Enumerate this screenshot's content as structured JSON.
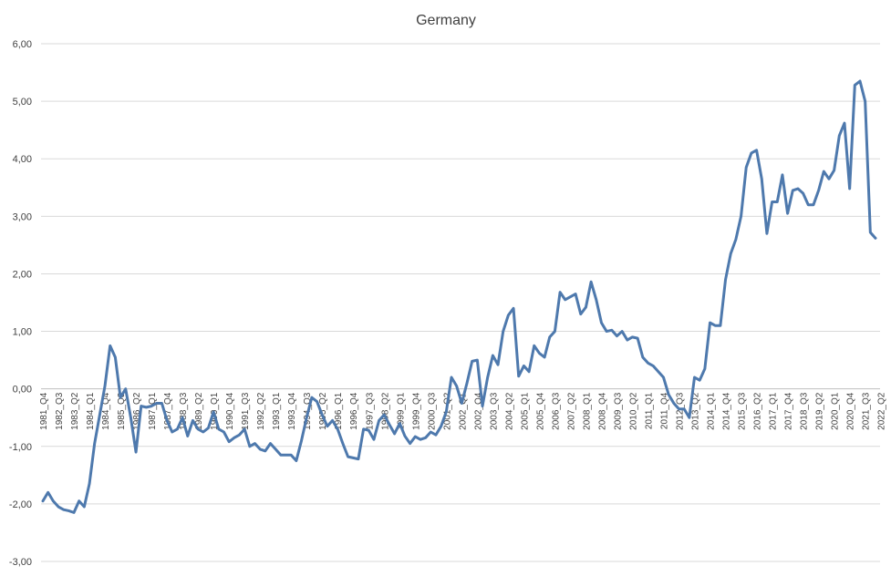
{
  "chart_data": {
    "type": "line",
    "title": "Germany",
    "xlabel": "",
    "ylabel": "",
    "ylim": [
      -3,
      6
    ],
    "yticks": [
      -3,
      -2,
      -1,
      0,
      1,
      2,
      3,
      4,
      5,
      6
    ],
    "ytick_labels": [
      "-3,00",
      "-2,00",
      "-1,00",
      "0,00",
      "1,00",
      "2,00",
      "3,00",
      "4,00",
      "5,00",
      "6,00"
    ],
    "grid": true,
    "legend": "none",
    "line_color": "#4e79ad",
    "x_start": "1981_Q4",
    "x_end": "2022_Q2",
    "xtick_labels": [
      "1981_Q4",
      "1982_Q3",
      "1983_Q2",
      "1984_Q1",
      "1984_Q4",
      "1985_Q3",
      "1986_Q2",
      "1987_Q1",
      "1987_Q4",
      "1988_Q3",
      "1989_Q2",
      "1990_Q1",
      "1990_Q4",
      "1991_Q3",
      "1992_Q2",
      "1993_Q1",
      "1993_Q4",
      "1994_Q3",
      "1995_Q2",
      "1996_Q1",
      "1996_Q4",
      "1997_Q3",
      "1998_Q2",
      "1999_Q1",
      "1999_Q4",
      "2000_Q3",
      "2001_Q2",
      "2002_Q1",
      "2002_Q4",
      "2003_Q3",
      "2004_Q2",
      "2005_Q1",
      "2005_Q4",
      "2006_Q3",
      "2007_Q2",
      "2008_Q1",
      "2008_Q4",
      "2009_Q3",
      "2010_Q2",
      "2011_Q1",
      "2011_Q4",
      "2012_Q3",
      "2013_Q2",
      "2014_Q1",
      "2014_Q4",
      "2015_Q3",
      "2016_Q2",
      "2017_Q1",
      "2017_Q4",
      "2018_Q3",
      "2019_Q2",
      "2020_Q1",
      "2020_Q4",
      "2021_Q3",
      "2022_Q2"
    ],
    "series": [
      {
        "values": [
          -1.95,
          -1.8,
          -1.95,
          -2.05,
          -2.1,
          -2.12,
          -2.15,
          -1.95,
          -2.05,
          -1.65,
          -0.95,
          -0.45,
          0.05,
          0.75,
          0.55,
          -0.15,
          0.0,
          -0.5,
          -1.1,
          -0.3,
          -0.32,
          -0.3,
          -0.25,
          -0.25,
          -0.55,
          -0.75,
          -0.7,
          -0.5,
          -0.82,
          -0.55,
          -0.7,
          -0.75,
          -0.68,
          -0.4,
          -0.7,
          -0.75,
          -0.92,
          -0.85,
          -0.8,
          -0.7,
          -1.0,
          -0.95,
          -1.05,
          -1.08,
          -0.95,
          -1.05,
          -1.15,
          -1.15,
          -1.15,
          -1.25,
          -0.9,
          -0.5,
          -0.15,
          -0.22,
          -0.45,
          -0.65,
          -0.55,
          -0.7,
          -0.95,
          -1.18,
          -1.2,
          -1.22,
          -0.7,
          -0.72,
          -0.88,
          -0.55,
          -0.45,
          -0.62,
          -0.78,
          -0.6,
          -0.82,
          -0.95,
          -0.83,
          -0.88,
          -0.85,
          -0.75,
          -0.8,
          -0.65,
          -0.4,
          0.2,
          0.05,
          -0.25,
          0.1,
          0.48,
          0.5,
          -0.3,
          0.2,
          0.58,
          0.42,
          1.0,
          1.28,
          1.4,
          0.22,
          0.4,
          0.3,
          0.75,
          0.62,
          0.55,
          0.9,
          1.0,
          1.68,
          1.55,
          1.6,
          1.65,
          1.3,
          1.42,
          1.86,
          1.55,
          1.15,
          1.0,
          1.02,
          0.92,
          1.0,
          0.85,
          0.9,
          0.88,
          0.55,
          0.45,
          0.4,
          0.3,
          0.2,
          -0.1,
          -0.25,
          -0.35,
          -0.35,
          -0.5,
          0.2,
          0.15,
          0.35,
          1.15,
          1.1,
          1.1,
          1.9,
          2.35,
          2.6,
          3.0,
          3.85,
          4.1,
          4.15,
          3.65,
          2.7,
          3.25,
          3.25,
          3.72,
          3.05,
          3.45,
          3.48,
          3.4,
          3.2,
          3.2,
          3.45,
          3.78,
          3.65,
          3.8,
          4.4,
          4.62,
          3.48,
          5.28,
          5.35,
          5.0,
          2.72,
          2.62
        ]
      }
    ]
  }
}
